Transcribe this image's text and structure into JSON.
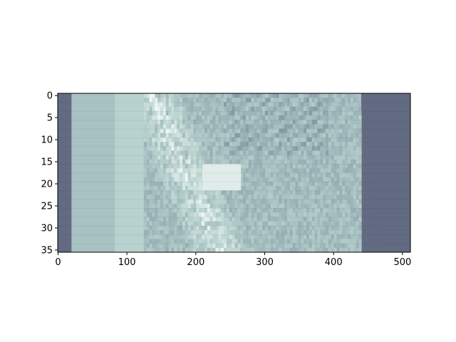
{
  "chart_data": {
    "type": "heatmap",
    "title": "",
    "xlabel": "",
    "ylabel": "",
    "xlim": [
      0,
      511
    ],
    "ylim": [
      35,
      0
    ],
    "xticks": [
      0,
      100,
      200,
      300,
      400,
      500
    ],
    "yticks": [
      0,
      5,
      10,
      15,
      20,
      25,
      30,
      35
    ],
    "grid": false,
    "colormap": "bone",
    "colors": {
      "dark": "#4e4f6e",
      "mid": "#8ea3ab",
      "light": "#b8d2cf",
      "bright": "#eef6f3"
    },
    "regions": [
      {
        "name": "left-dark-band",
        "x_range": [
          0,
          20
        ],
        "y_range": [
          0,
          35
        ],
        "level": 0.15
      },
      {
        "name": "plate-band",
        "x_range": [
          20,
          83
        ],
        "y_range": [
          0,
          35
        ],
        "level": 0.62
      },
      {
        "name": "bright-column",
        "x_range": [
          83,
          125
        ],
        "y_range": [
          0,
          35
        ],
        "level": 0.72
      },
      {
        "name": "textured-body",
        "x_range": [
          125,
          440
        ],
        "y_range": [
          0,
          35
        ],
        "level": 0.6
      },
      {
        "name": "bright-block",
        "x_range": [
          210,
          265
        ],
        "y_range": [
          16,
          21
        ],
        "level": 0.92
      },
      {
        "name": "right-dark-band",
        "x_range": [
          440,
          511
        ],
        "y_range": [
          0,
          35
        ],
        "level": 0.15
      }
    ]
  }
}
